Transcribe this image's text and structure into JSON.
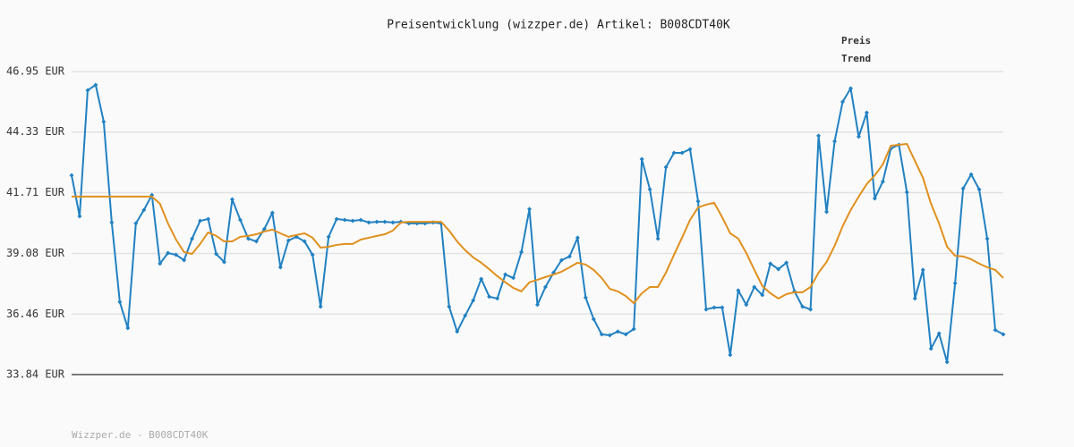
{
  "chart_data": {
    "type": "line",
    "title": "Preisentwicklung (wizzper.de) Artikel: B008CDT40K",
    "footer": "Wizzper.de - B008CDT40K",
    "ylim": [
      33.84,
      46.95
    ],
    "yticks": [
      {
        "value": 33.84,
        "label": "33.84 EUR"
      },
      {
        "value": 36.46,
        "label": "36.46 EUR"
      },
      {
        "value": 39.08,
        "label": "39.08 EUR"
      },
      {
        "value": 41.71,
        "label": "41.71 EUR"
      },
      {
        "value": 44.33,
        "label": "44.33 EUR"
      },
      {
        "value": 46.95,
        "label": "46.95 EUR"
      }
    ],
    "grid": true,
    "legend": "top-right",
    "series": [
      {
        "name": "Preis",
        "color": "#2181c2",
        "markers": true,
        "values": [
          42.46,
          40.69,
          46.14,
          46.37,
          44.78,
          40.42,
          36.98,
          35.85,
          40.38,
          40.96,
          41.61,
          38.64,
          39.1,
          39.02,
          38.79,
          39.72,
          40.49,
          40.57,
          39.06,
          38.71,
          41.42,
          40.53,
          39.72,
          39.6,
          40.14,
          40.84,
          38.48,
          39.64,
          39.8,
          39.6,
          39.02,
          36.78,
          39.8,
          40.57,
          40.53,
          40.49,
          40.53,
          40.42,
          40.45,
          40.45,
          40.42,
          40.45,
          40.38,
          40.38,
          40.38,
          40.42,
          40.38,
          36.78,
          35.7,
          36.39,
          37.05,
          37.98,
          37.21,
          37.13,
          38.17,
          38.02,
          39.14,
          41.0,
          36.86,
          37.63,
          38.25,
          38.79,
          38.95,
          39.76,
          37.17,
          36.24,
          35.58,
          35.54,
          35.7,
          35.58,
          35.81,
          43.16,
          41.85,
          39.72,
          42.81,
          43.43,
          43.43,
          43.59,
          41.34,
          36.66,
          36.74,
          36.74,
          34.69,
          37.48,
          36.86,
          37.63,
          37.28,
          38.64,
          38.4,
          38.68,
          37.44,
          36.78,
          36.66,
          44.17,
          40.88,
          43.93,
          45.64,
          46.22,
          44.13,
          45.17,
          41.46,
          42.19,
          43.62,
          43.78,
          41.73,
          37.13,
          38.37,
          34.96,
          35.62,
          34.38,
          37.79,
          41.89,
          42.5,
          41.85,
          39.72,
          35.77,
          35.58
        ]
      },
      {
        "name": "Trend",
        "color": "#e0901e",
        "markers": false,
        "values": [
          41.54,
          41.54,
          41.54,
          41.54,
          41.54,
          41.54,
          41.54,
          41.54,
          41.54,
          41.54,
          41.54,
          41.23,
          40.38,
          39.68,
          39.14,
          39.06,
          39.49,
          39.99,
          39.84,
          39.6,
          39.6,
          39.8,
          39.84,
          39.91,
          40.03,
          40.11,
          39.95,
          39.8,
          39.88,
          39.95,
          39.76,
          39.33,
          39.37,
          39.45,
          39.49,
          39.49,
          39.68,
          39.76,
          39.84,
          39.91,
          40.07,
          40.42,
          40.45,
          40.45,
          40.45,
          40.45,
          40.45,
          40.07,
          39.6,
          39.22,
          38.91,
          38.68,
          38.4,
          38.1,
          37.83,
          37.59,
          37.44,
          37.83,
          37.94,
          38.06,
          38.17,
          38.29,
          38.48,
          38.68,
          38.6,
          38.37,
          38.02,
          37.55,
          37.44,
          37.24,
          36.93,
          37.36,
          37.63,
          37.63,
          38.25,
          39.02,
          39.76,
          40.53,
          41.07,
          41.19,
          41.27,
          40.65,
          39.95,
          39.72,
          39.1,
          38.37,
          37.67,
          37.36,
          37.13,
          37.32,
          37.4,
          37.4,
          37.63,
          38.25,
          38.71,
          39.41,
          40.26,
          40.96,
          41.54,
          42.08,
          42.46,
          42.93,
          43.74,
          43.78,
          43.82,
          43.08,
          42.35,
          41.23,
          40.38,
          39.37,
          38.98,
          38.95,
          38.83,
          38.64,
          38.48,
          38.37,
          38.02
        ]
      }
    ]
  }
}
